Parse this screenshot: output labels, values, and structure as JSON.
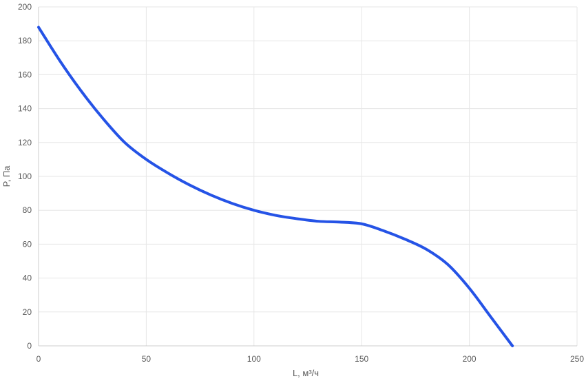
{
  "chart_data": {
    "type": "line",
    "title": "",
    "xlabel": "L, м³/ч",
    "ylabel": "P, Па",
    "xlim": [
      0,
      250
    ],
    "ylim": [
      0,
      200
    ],
    "x_ticks": [
      0,
      50,
      100,
      150,
      200,
      250
    ],
    "y_ticks": [
      0,
      20,
      40,
      60,
      80,
      100,
      120,
      140,
      160,
      180,
      200
    ],
    "grid": true,
    "series": [
      {
        "color": "#2553e6",
        "points": [
          [
            0,
            188
          ],
          [
            10,
            168
          ],
          [
            20,
            150
          ],
          [
            30,
            134
          ],
          [
            40,
            120
          ],
          [
            50,
            110
          ],
          [
            60,
            102
          ],
          [
            70,
            95
          ],
          [
            80,
            89
          ],
          [
            90,
            84
          ],
          [
            100,
            80
          ],
          [
            110,
            77
          ],
          [
            120,
            75
          ],
          [
            130,
            73.5
          ],
          [
            140,
            73
          ],
          [
            150,
            72
          ],
          [
            160,
            68
          ],
          [
            170,
            63
          ],
          [
            180,
            57
          ],
          [
            190,
            48
          ],
          [
            200,
            34
          ],
          [
            210,
            17
          ],
          [
            220,
            0
          ]
        ]
      }
    ]
  },
  "colors": {
    "grid": "#e6e6e6",
    "axis": "#cccccc",
    "text": "#595959",
    "line": "#2553e6"
  }
}
